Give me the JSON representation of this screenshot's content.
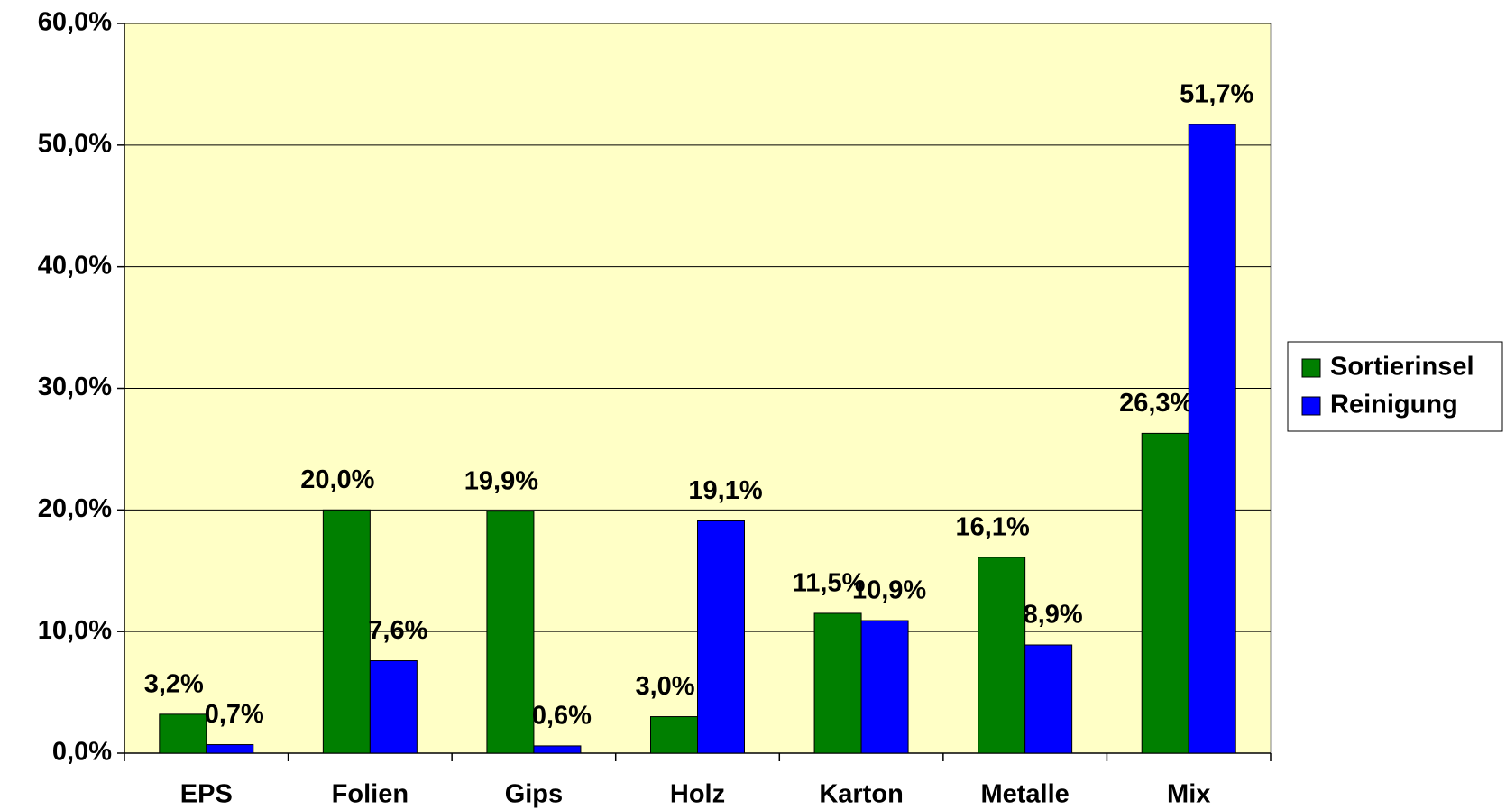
{
  "chart_data": {
    "type": "bar",
    "categories": [
      "EPS",
      "Folien",
      "Gips",
      "Holz",
      "Karton",
      "Metalle",
      "Mix"
    ],
    "series": [
      {
        "name": "Sortierinsel",
        "color": "#007f00",
        "values": [
          3.2,
          20.0,
          19.9,
          3.0,
          11.5,
          16.1,
          26.3
        ],
        "value_labels": [
          "3,2%",
          "20,0%",
          "19,9%",
          "3,0%",
          "11,5%",
          "16,1%",
          "26,3%"
        ]
      },
      {
        "name": "Reinigung",
        "color": "#0000ff",
        "values": [
          0.7,
          7.6,
          0.6,
          19.1,
          10.9,
          8.9,
          51.7
        ],
        "value_labels": [
          "0,7%",
          "7,6%",
          "0,6%",
          "19,1%",
          "10,9%",
          "8,9%",
          "51,7%"
        ]
      }
    ],
    "ylim": [
      0,
      60
    ],
    "yticks": [
      {
        "value": 0,
        "label": "0,0%"
      },
      {
        "value": 10,
        "label": "10,0%"
      },
      {
        "value": 20,
        "label": "20,0%"
      },
      {
        "value": 30,
        "label": "30,0%"
      },
      {
        "value": 40,
        "label": "40,0%"
      },
      {
        "value": 50,
        "label": "50,0%"
      },
      {
        "value": 60,
        "label": "60,0%"
      }
    ],
    "grid": true,
    "legend": "right",
    "background": "#ffffc6"
  }
}
